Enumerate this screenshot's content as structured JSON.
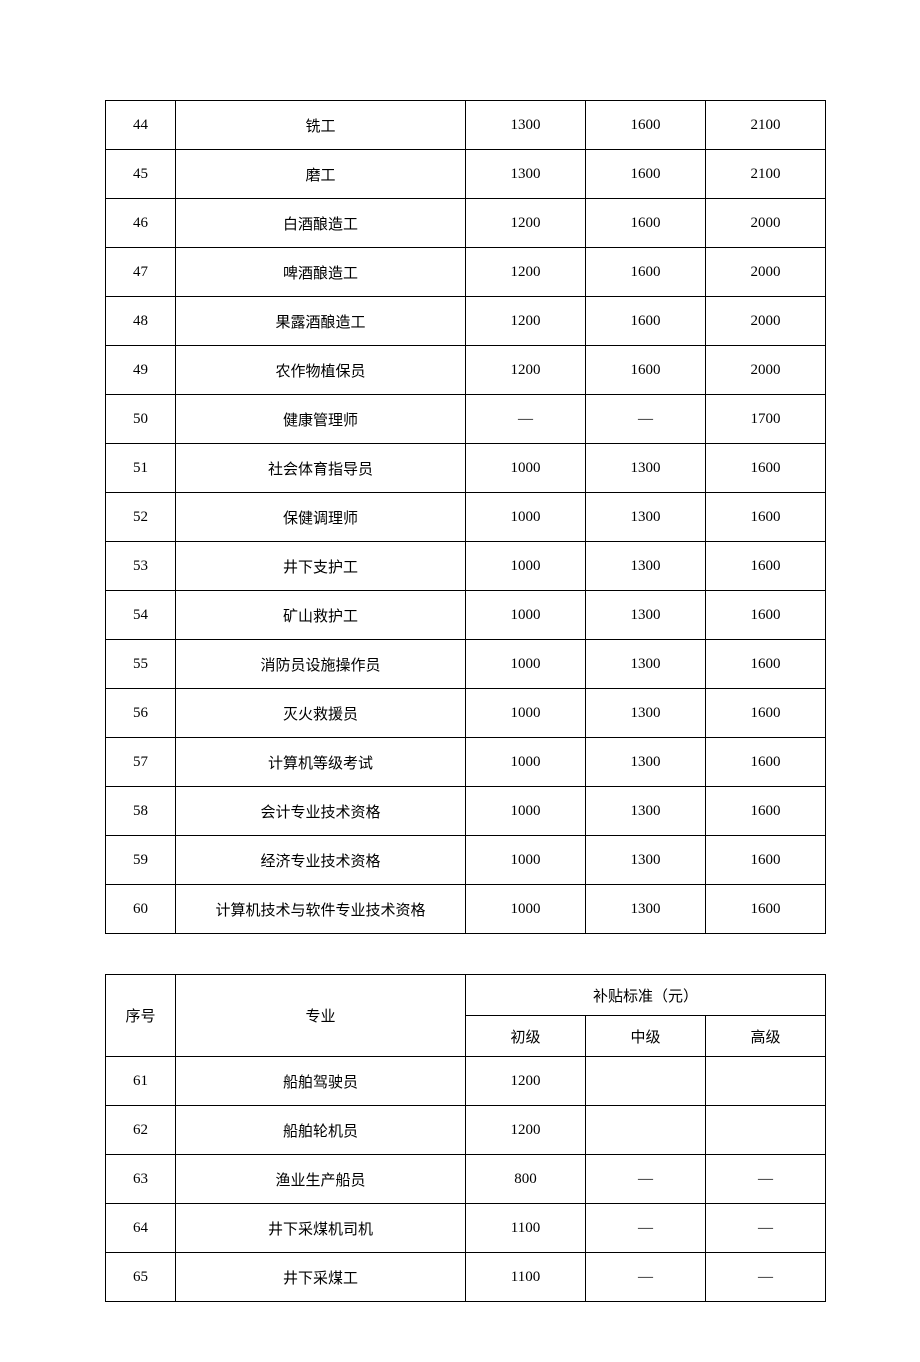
{
  "table1": {
    "col_widths": {
      "idx": 70,
      "name": 290,
      "val": 120
    },
    "rows": [
      {
        "idx": "44",
        "name": "铣工",
        "c1": "1300",
        "c2": "1600",
        "c3": "2100"
      },
      {
        "idx": "45",
        "name": "磨工",
        "c1": "1300",
        "c2": "1600",
        "c3": "2100"
      },
      {
        "idx": "46",
        "name": "白酒酿造工",
        "c1": "1200",
        "c2": "1600",
        "c3": "2000"
      },
      {
        "idx": "47",
        "name": "啤酒酿造工",
        "c1": "1200",
        "c2": "1600",
        "c3": "2000"
      },
      {
        "idx": "48",
        "name": "果露酒酿造工",
        "c1": "1200",
        "c2": "1600",
        "c3": "2000"
      },
      {
        "idx": "49",
        "name": "农作物植保员",
        "c1": "1200",
        "c2": "1600",
        "c3": "2000"
      },
      {
        "idx": "50",
        "name": "健康管理师",
        "c1": "—",
        "c2": "—",
        "c3": "1700"
      },
      {
        "idx": "51",
        "name": "社会体育指导员",
        "c1": "1000",
        "c2": "1300",
        "c3": "1600"
      },
      {
        "idx": "52",
        "name": "保健调理师",
        "c1": "1000",
        "c2": "1300",
        "c3": "1600"
      },
      {
        "idx": "53",
        "name": "井下支护工",
        "c1": "1000",
        "c2": "1300",
        "c3": "1600"
      },
      {
        "idx": "54",
        "name": "矿山救护工",
        "c1": "1000",
        "c2": "1300",
        "c3": "1600"
      },
      {
        "idx": "55",
        "name": "消防员设施操作员",
        "c1": "1000",
        "c2": "1300",
        "c3": "1600"
      },
      {
        "idx": "56",
        "name": "灭火救援员",
        "c1": "1000",
        "c2": "1300",
        "c3": "1600"
      },
      {
        "idx": "57",
        "name": "计算机等级考试",
        "c1": "1000",
        "c2": "1300",
        "c3": "1600"
      },
      {
        "idx": "58",
        "name": "会计专业技术资格",
        "c1": "1000",
        "c2": "1300",
        "c3": "1600"
      },
      {
        "idx": "59",
        "name": "经济专业技术资格",
        "c1": "1000",
        "c2": "1300",
        "c3": "1600"
      },
      {
        "idx": "60",
        "name": "计算机技术与软件专业技术资格",
        "c1": "1000",
        "c2": "1300",
        "c3": "1600"
      }
    ]
  },
  "table2": {
    "header": {
      "idx": "序号",
      "name": "专业",
      "group": "补贴标准（元）",
      "sub1": "初级",
      "sub2": "中级",
      "sub3": "高级"
    },
    "rows": [
      {
        "idx": "61",
        "name": "船舶驾驶员",
        "c1": "1200",
        "c2": "",
        "c3": ""
      },
      {
        "idx": "62",
        "name": "船舶轮机员",
        "c1": "1200",
        "c2": "",
        "c3": ""
      },
      {
        "idx": "63",
        "name": "渔业生产船员",
        "c1": "800",
        "c2": "—",
        "c3": "—"
      },
      {
        "idx": "64",
        "name": "井下采煤机司机",
        "c1": "1100",
        "c2": "—",
        "c3": "—"
      },
      {
        "idx": "65",
        "name": "井下采煤工",
        "c1": "1100",
        "c2": "—",
        "c3": "—"
      }
    ]
  },
  "colors": {
    "border": "#000000",
    "text": "#000000",
    "background": "#ffffff"
  },
  "typography": {
    "font_family": "SimSun",
    "font_size_pt": 11
  }
}
